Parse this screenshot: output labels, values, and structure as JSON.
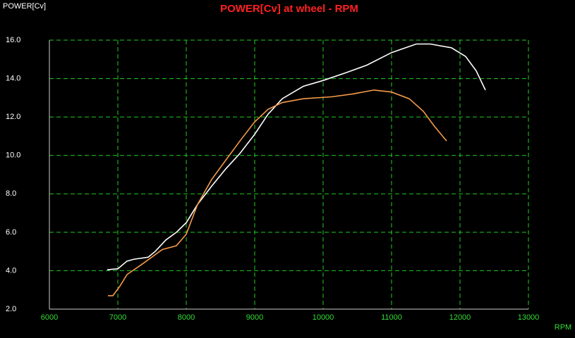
{
  "chart_data": {
    "type": "line",
    "title": "POWER[Cv] at wheel - RPM",
    "y_label": "POWER[Cv]",
    "x_label": "RPM",
    "xlim": [
      6000,
      13000
    ],
    "xticks": [
      6000,
      7000,
      8000,
      9000,
      10000,
      11000,
      12000,
      13000
    ],
    "ylim": [
      2,
      16
    ],
    "yticks": [
      {
        "value": 2,
        "label": "2.0"
      },
      {
        "value": 4,
        "label": "4.0"
      },
      {
        "value": 6,
        "label": "6.0"
      },
      {
        "value": 8,
        "label": "8.0"
      },
      {
        "value": 10,
        "label": "10.0"
      },
      {
        "value": 12,
        "label": "12.0"
      },
      {
        "value": 14,
        "label": "14.0"
      },
      {
        "value": 16,
        "label": "16.0"
      }
    ],
    "grid": true,
    "series": [
      {
        "color": "#ffffff",
        "x": [
          6845,
          7000,
          7134,
          7237,
          7443,
          7546,
          7701,
          7856,
          8000,
          8165,
          8371,
          8577,
          8784,
          9000,
          9196,
          9402,
          9711,
          10000,
          10330,
          10639,
          11000,
          11361,
          11567,
          11876,
          12082,
          12237,
          12371
        ],
        "values": [
          4.05,
          4.1,
          4.5,
          4.6,
          4.7,
          5.0,
          5.6,
          6.0,
          6.5,
          7.45,
          8.4,
          9.3,
          10.1,
          11.1,
          12.15,
          12.95,
          13.6,
          13.9,
          14.3,
          14.7,
          15.35,
          15.8,
          15.8,
          15.6,
          15.15,
          14.4,
          13.4
        ]
      },
      {
        "color": "#f59a4a",
        "x": [
          6856,
          6928,
          7031,
          7134,
          7340,
          7495,
          7649,
          7856,
          8000,
          8165,
          8371,
          8577,
          8784,
          9000,
          9196,
          9402,
          9711,
          10124,
          10433,
          10742,
          11000,
          11258,
          11464,
          11619,
          11804
        ],
        "values": [
          2.7,
          2.7,
          3.2,
          3.8,
          4.3,
          4.7,
          5.1,
          5.3,
          5.9,
          7.45,
          8.75,
          9.75,
          10.75,
          11.75,
          12.4,
          12.75,
          12.95,
          13.05,
          13.2,
          13.4,
          13.3,
          12.95,
          12.3,
          11.55,
          10.75
        ]
      }
    ]
  }
}
